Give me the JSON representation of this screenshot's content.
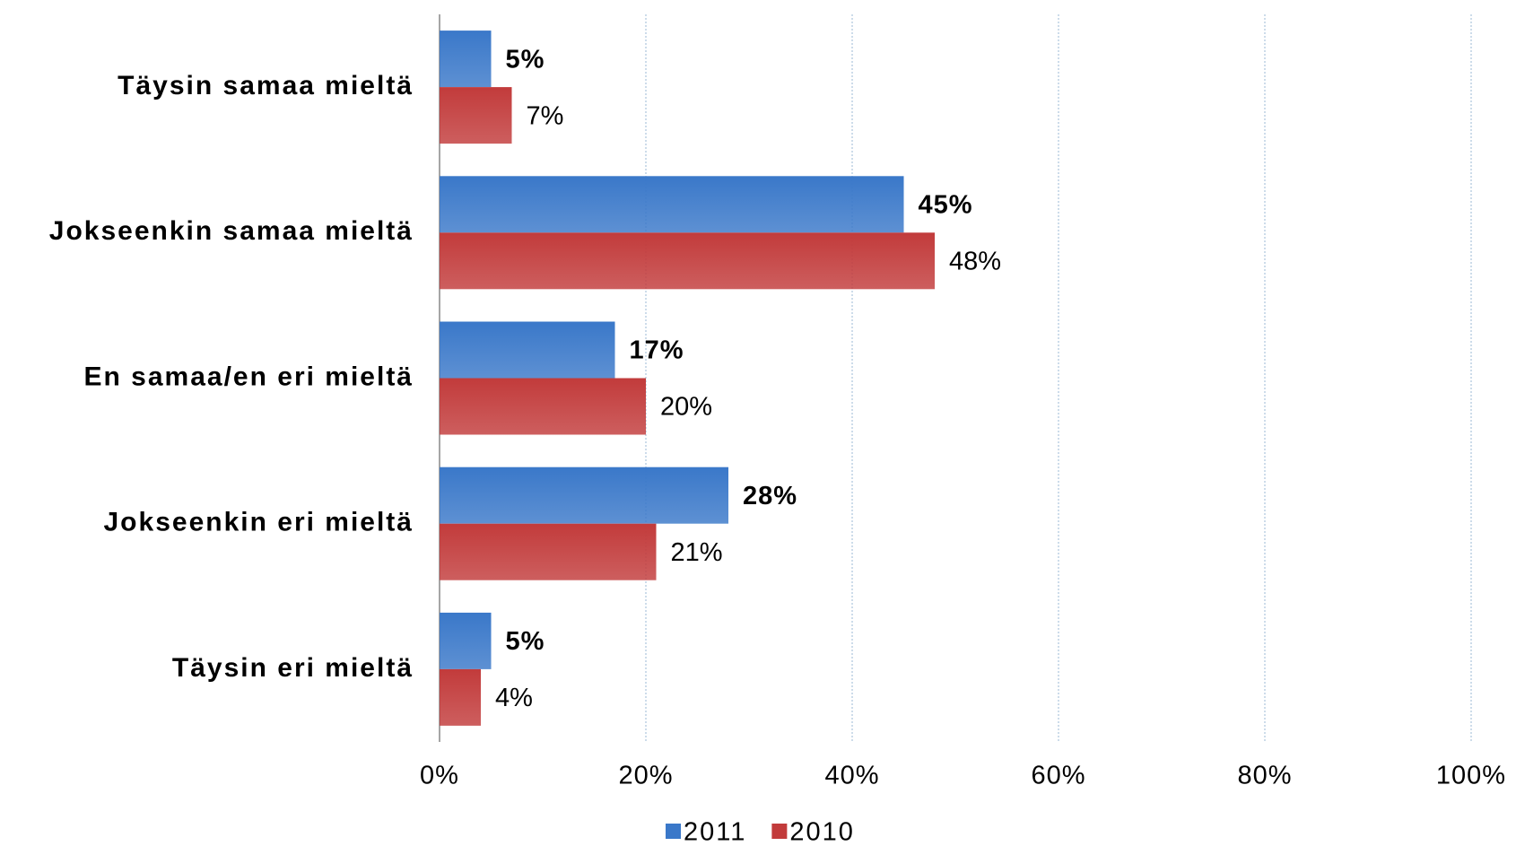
{
  "chart_data": {
    "type": "bar",
    "orientation": "horizontal",
    "categories": [
      "Täysin samaa mieltä",
      "Jokseenkin samaa mieltä",
      "En samaa/en eri mieltä",
      "Jokseenkin eri mieltä",
      "Täysin eri mieltä"
    ],
    "series": [
      {
        "name": "2011",
        "color": "#3a78c9",
        "values": [
          5,
          45,
          17,
          28,
          5
        ],
        "value_labels": [
          "5%",
          "45%",
          "17%",
          "28%",
          "5%"
        ]
      },
      {
        "name": "2010",
        "color": "#c23b3b",
        "values": [
          7,
          48,
          20,
          21,
          4
        ],
        "value_labels": [
          "7%",
          "48%",
          "20%",
          "21%",
          "4%"
        ]
      }
    ],
    "xlim": [
      0,
      100
    ],
    "xticks": [
      {
        "value": 0,
        "label": "0%"
      },
      {
        "value": 20,
        "label": "20%"
      },
      {
        "value": 40,
        "label": "40%"
      },
      {
        "value": 60,
        "label": "60%"
      },
      {
        "value": 80,
        "label": "80%"
      },
      {
        "value": 100,
        "label": "100%"
      }
    ],
    "grid": true,
    "legend": "bottom"
  }
}
